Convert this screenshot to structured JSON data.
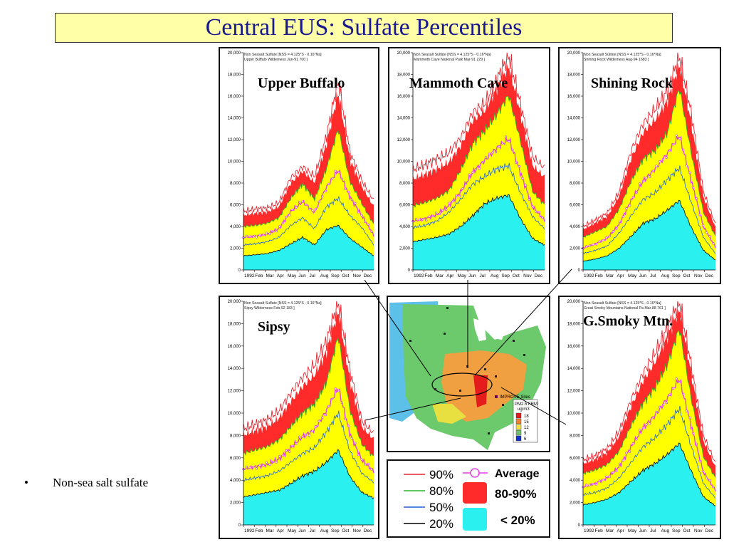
{
  "slide": {
    "title": "Central EUS: Sulfate  Percentiles",
    "bullet_marker": "•",
    "bullet_text": "Non-sea salt sulfate"
  },
  "chart_data": [
    {
      "type": "area",
      "site": "Upper Buffalo",
      "header_line1": "Non Seasalt Sulfate [NSS = 4.125*S - 0.16*Na]",
      "header_line2": "Upper Buffalo Wilderness Jun-91 700 ]",
      "x": [
        "1992",
        "Feb",
        "Mar",
        "Apr",
        "May",
        "Jun",
        "Jul",
        "Aug",
        "Sep",
        "Oct",
        "Nov",
        "Dec"
      ],
      "yticks": [
        "0",
        "2,000",
        "4,000",
        "6,000",
        "8,000",
        "10,000",
        "12,000",
        "14,000",
        "16,000",
        "18,000",
        "20,000"
      ],
      "ylim": [
        0,
        20000
      ],
      "series": [
        {
          "name": "90%",
          "values": [
            5400,
            5600,
            5700,
            6200,
            8500,
            9500,
            8600,
            12300,
            17500,
            10800,
            8200,
            6400
          ]
        },
        {
          "name": "80%",
          "values": [
            4000,
            4100,
            4300,
            4800,
            6600,
            7900,
            6500,
            9300,
            13000,
            8100,
            6100,
            4200
          ]
        },
        {
          "name": "Average",
          "values": [
            3000,
            3100,
            3300,
            3800,
            5400,
            6300,
            5300,
            7600,
            9200,
            6700,
            5000,
            3200
          ]
        },
        {
          "name": "50%",
          "values": [
            2300,
            2400,
            2600,
            3000,
            4100,
            4800,
            3800,
            5800,
            6600,
            5000,
            3900,
            2300
          ]
        },
        {
          "name": "20%",
          "values": [
            1300,
            1400,
            1500,
            1800,
            2400,
            3000,
            2300,
            3700,
            4100,
            2900,
            2100,
            1300
          ]
        }
      ]
    },
    {
      "type": "area",
      "site": "Mammoth Cave",
      "header_line1": "Non Seasalt Sulfate [NSS = 4.125*S - 0.16*Na]",
      "header_line2": "Mammoth Cave National Park Mar-91 229 ]",
      "x": [
        "1992",
        "Feb",
        "Mar",
        "Apr",
        "May",
        "Jun",
        "Jul",
        "Aug",
        "Sep",
        "Oct",
        "Nov",
        "Dec"
      ],
      "yticks": [
        "0",
        "2,000",
        "4,000",
        "6,000",
        "8,000",
        "10,000",
        "12,000",
        "14,000",
        "16,000",
        "18,000",
        "20,000"
      ],
      "ylim": [
        0,
        20000
      ],
      "series": [
        {
          "name": "90%",
          "values": [
            9200,
            9700,
            10200,
            10800,
            12200,
            14500,
            15300,
            17500,
            19800,
            15200,
            10400,
            9400
          ]
        },
        {
          "name": "80%",
          "values": [
            5900,
            6200,
            6600,
            7300,
            9200,
            11600,
            12800,
            14300,
            16100,
            11800,
            7200,
            6000
          ]
        },
        {
          "name": "Average",
          "values": [
            4500,
            4700,
            5100,
            5900,
            7200,
            9000,
            10100,
            11200,
            12100,
            8900,
            5800,
            4600
          ]
        },
        {
          "name": "50%",
          "values": [
            3900,
            4100,
            4500,
            5300,
            6500,
            7900,
            8600,
            9300,
            9600,
            7100,
            4900,
            3800
          ]
        },
        {
          "name": "20%",
          "values": [
            2600,
            2800,
            3000,
            3300,
            4000,
            5000,
            6100,
            6600,
            6900,
            4700,
            2900,
            2300
          ]
        }
      ]
    },
    {
      "type": "area",
      "site": "Shining Rock",
      "header_line1": "Non Seasalt Sulfate [NSS = 4.125*S - 0.16*Na]",
      "header_line2": "Shining Rock Wilderness Aug-94 1683 ]",
      "x": [
        "1992",
        "Feb",
        "Mar",
        "Apr",
        "May",
        "Jun",
        "Jul",
        "Aug",
        "Sep",
        "Oct",
        "Nov",
        "Dec"
      ],
      "yticks": [
        "0",
        "2,000",
        "4,000",
        "6,000",
        "8,000",
        "10,000",
        "12,000",
        "14,000",
        "16,000",
        "18,000",
        "20,000"
      ],
      "ylim": [
        0,
        20000
      ],
      "series": [
        {
          "name": "90%",
          "values": [
            4000,
            4600,
            5200,
            7200,
            11000,
            13500,
            14800,
            16500,
            19700,
            14400,
            7200,
            4200
          ]
        },
        {
          "name": "80%",
          "values": [
            3000,
            3500,
            4000,
            5600,
            8200,
            10200,
            11000,
            12600,
            16800,
            10700,
            5300,
            3100
          ]
        },
        {
          "name": "Average",
          "values": [
            2000,
            2400,
            2900,
            4200,
            6400,
            8200,
            9300,
            10700,
            12400,
            8200,
            4000,
            2100
          ]
        },
        {
          "name": "50%",
          "values": [
            1500,
            1800,
            2200,
            3400,
            5000,
            6500,
            7100,
            8300,
            9400,
            6200,
            3000,
            1500
          ]
        },
        {
          "name": "20%",
          "values": [
            800,
            1000,
            1300,
            2000,
            3100,
            4300,
            4700,
            5500,
            6400,
            3900,
            1800,
            900
          ]
        }
      ]
    },
    {
      "type": "area",
      "site": "Sipsy",
      "header_line1": "Non Seasalt Sulfate [NSS = 4.125*S - 0.16*Na]",
      "header_line2": "Sipsy Wilderness Feb-92 183 ]",
      "x": [
        "1992",
        "Feb",
        "Mar",
        "Apr",
        "May",
        "Jun",
        "Jul",
        "Aug",
        "Sep",
        "Oct",
        "Nov",
        "Dec"
      ],
      "yticks": [
        "0",
        "2,000",
        "4,000",
        "6,000",
        "8,000",
        "10,000",
        "12,000",
        "14,000",
        "16,000",
        "18,000",
        "20,000"
      ],
      "ylim": [
        0,
        20000
      ],
      "series": [
        {
          "name": "90%",
          "values": [
            8600,
            9000,
            9400,
            10200,
            11800,
            13200,
            14300,
            16400,
            20000,
            13800,
            9300,
            8200
          ]
        },
        {
          "name": "80%",
          "values": [
            6400,
            6700,
            7000,
            7600,
            8800,
            10000,
            10800,
            12700,
            16900,
            10200,
            7200,
            6100
          ]
        },
        {
          "name": "Average",
          "values": [
            5000,
            5200,
            5400,
            5900,
            6900,
            7900,
            8500,
            10200,
            12300,
            8100,
            5800,
            4800
          ]
        },
        {
          "name": "50%",
          "values": [
            4000,
            4200,
            4400,
            4800,
            5600,
            6400,
            6900,
            8300,
            10000,
            6600,
            4600,
            3800
          ]
        },
        {
          "name": "20%",
          "values": [
            2500,
            2700,
            2900,
            3100,
            3700,
            4400,
            4800,
            5600,
            6700,
            4300,
            2900,
            2400
          ]
        }
      ]
    },
    {
      "type": "area",
      "site": "G.Smoky Mtn.",
      "header_line1": "Non Seasalt Sulfate [NSS = 4.125*S - 0.16*Na]",
      "header_line2": "Great Smoky Mountains National Pa Mar-88 761 ]",
      "x": [
        "1992",
        "Feb",
        "Mar",
        "Apr",
        "May",
        "Jun",
        "Jul",
        "Aug",
        "Sep",
        "Oct",
        "Nov",
        "Dec"
      ],
      "yticks": [
        "0",
        "2,000",
        "4,000",
        "6,000",
        "8,000",
        "10,000",
        "12,000",
        "14,000",
        "16,000",
        "18,000",
        "20,000"
      ],
      "ylim": [
        0,
        20000
      ],
      "series": [
        {
          "name": "90%",
          "values": [
            5800,
            6200,
            6800,
            8400,
            11200,
            13600,
            15400,
            17600,
            20000,
            14200,
            8000,
            5500
          ]
        },
        {
          "name": "80%",
          "values": [
            4600,
            4900,
            5400,
            6600,
            8900,
            10900,
            12300,
            14300,
            17600,
            11200,
            6100,
            4200
          ]
        },
        {
          "name": "Average",
          "values": [
            3400,
            3700,
            4200,
            5200,
            7000,
            8700,
            9800,
            11300,
            13100,
            8800,
            4700,
            3100
          ]
        },
        {
          "name": "50%",
          "values": [
            2700,
            2900,
            3300,
            4200,
            5600,
            7000,
            7800,
            9000,
            10400,
            7000,
            3700,
            2400
          ]
        },
        {
          "name": "20%",
          "values": [
            1800,
            2000,
            2300,
            2900,
            3900,
            4900,
            5500,
            6300,
            7300,
            4800,
            2500,
            1700
          ]
        }
      ]
    }
  ],
  "map": {
    "legend_site_label": "IMPROVE Sites",
    "scale_title": "PM2.5 FRM",
    "scale_unit": "ug/m3",
    "scale_values": [
      "18",
      "15",
      "12",
      "9",
      "6"
    ],
    "scale_colors": [
      "#e51c1c",
      "#f08030",
      "#f0e040",
      "#70c070",
      "#1030d0"
    ]
  },
  "legend": {
    "p90": "90%",
    "p80": "80%",
    "p50": "50%",
    "p20": "20%",
    "average": "Average",
    "band_80_90": "80-90%",
    "band_lt20": "< 20%",
    "colors": {
      "p90": "#e8232e",
      "p80": "#2cb52c",
      "p50": "#1f5fd8",
      "p20": "#000000",
      "avg": "#e040e0",
      "band_red": "#ff2a2a",
      "band_cyan": "#2af0f0",
      "band_yellow": "#ffff00"
    }
  }
}
